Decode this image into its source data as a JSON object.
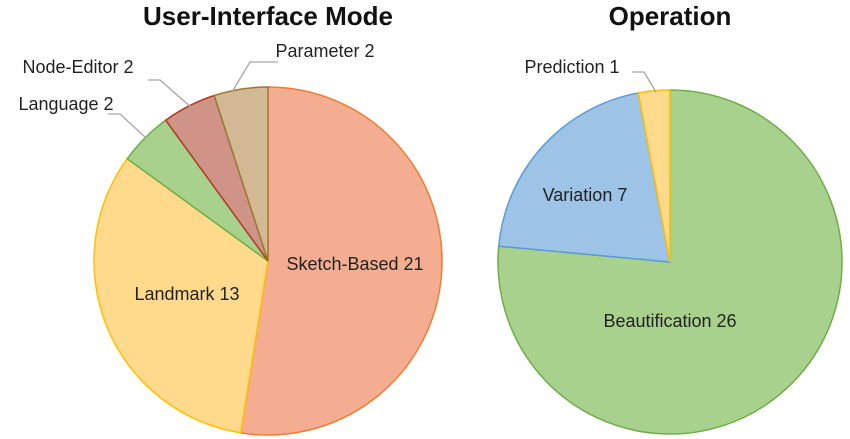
{
  "chart_data": [
    {
      "type": "pie",
      "title": "User-Interface Mode",
      "categories": [
        "Sketch-Based",
        "Landmark",
        "Language",
        "Node-Editor",
        "Parameter"
      ],
      "values": [
        21,
        13,
        2,
        2,
        2
      ],
      "colors": [
        "#f5ad92",
        "#ffd98c",
        "#a9d18e",
        "#cf9487",
        "#d3b896"
      ],
      "edge_colors": [
        "#ed7d31",
        "#ffc000",
        "#70ad47",
        "#b23a1e",
        "#9e7a2e"
      ]
    },
    {
      "type": "pie",
      "title": "Operation",
      "categories": [
        "Beautification",
        "Variation",
        "Prediction"
      ],
      "values": [
        26,
        7,
        1
      ],
      "colors": [
        "#a9d18e",
        "#9dc3e6",
        "#ffd98c"
      ],
      "edge_colors": [
        "#70ad47",
        "#5b9bd5",
        "#ffc000"
      ]
    }
  ]
}
